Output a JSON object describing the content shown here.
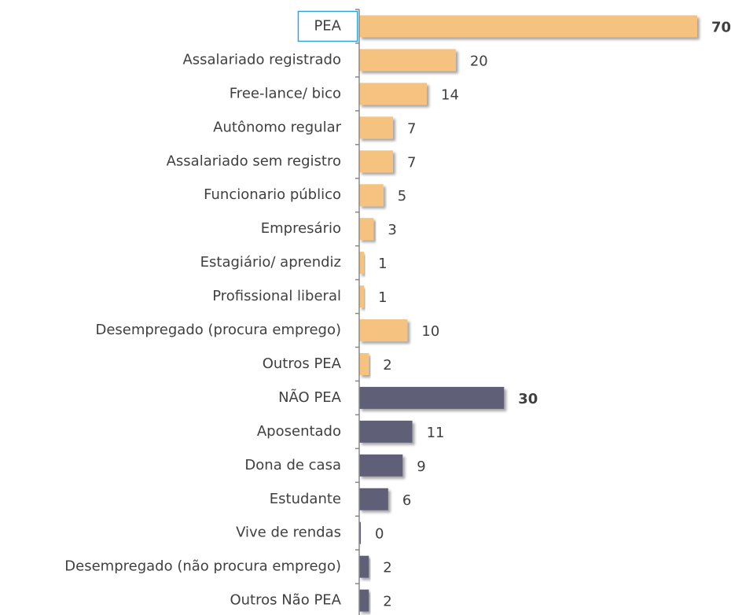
{
  "chart_data": {
    "type": "barh",
    "categories": [
      "PEA",
      "Assalariado registrado",
      "Free-lance/ bico",
      "Autônomo regular",
      "Assalariado sem registro",
      "Funcionario público",
      "Empresário",
      "Estagiário/ aprendiz",
      "Profissional liberal",
      "Desempregado (procura emprego)",
      "Outros PEA",
      "NÃO PEA",
      "Aposentado",
      "Dona de casa",
      "Estudante",
      "Vive de rendas",
      "Desempregado (não procura emprego)",
      "Outros Não PEA"
    ],
    "values": [
      70,
      20,
      14,
      7,
      7,
      5,
      3,
      1,
      1,
      10,
      2,
      30,
      11,
      9,
      6,
      0,
      2,
      2
    ],
    "colors": [
      "#f5c37f",
      "#f5c37f",
      "#f5c37f",
      "#f5c37f",
      "#f5c37f",
      "#f5c37f",
      "#f5c37f",
      "#f5c37f",
      "#f5c37f",
      "#f5c37f",
      "#f5c37f",
      "#5f6178",
      "#5f6178",
      "#5f6178",
      "#5f6178",
      "#5f6178",
      "#5f6178",
      "#5f6178"
    ],
    "bold": [
      true,
      false,
      false,
      false,
      false,
      false,
      false,
      false,
      false,
      false,
      false,
      true,
      false,
      false,
      false,
      false,
      false,
      false
    ]
  }
}
